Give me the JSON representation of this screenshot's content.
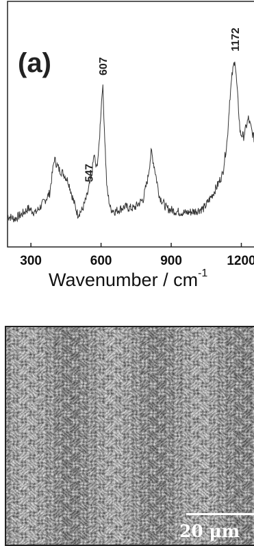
{
  "chart_data": {
    "type": "line",
    "panel_label": "(a)",
    "xlabel_main": "Wavenumber / cm",
    "xlabel_exp": "-1",
    "xlim": [
      200,
      1260
    ],
    "xticks": [
      300,
      600,
      900,
      1200
    ],
    "xtick_labels": [
      "300",
      "600",
      "900",
      "1200"
    ],
    "peak_annotations": [
      {
        "x": 547,
        "label": "547"
      },
      {
        "x": 607,
        "label": "607"
      },
      {
        "x": 1172,
        "label": "1172"
      }
    ],
    "series": [
      {
        "x": [
          200,
          230,
          260,
          290,
          320,
          350,
          380,
          400,
          420,
          440,
          460,
          480,
          500,
          520,
          540,
          560,
          570,
          580,
          590,
          600,
          607,
          615,
          625,
          640,
          660,
          700,
          740,
          780,
          800,
          815,
          830,
          850,
          880,
          920,
          960,
          1000,
          1040,
          1080,
          1100,
          1120,
          1140,
          1150,
          1160,
          1172,
          1185,
          1195,
          1210,
          1230,
          1260
        ],
        "y": [
          0.07,
          0.05,
          0.08,
          0.12,
          0.09,
          0.15,
          0.22,
          0.45,
          0.38,
          0.35,
          0.3,
          0.18,
          0.08,
          0.11,
          0.2,
          0.34,
          0.48,
          0.38,
          0.5,
          0.78,
          0.96,
          0.62,
          0.25,
          0.12,
          0.1,
          0.13,
          0.12,
          0.18,
          0.32,
          0.5,
          0.38,
          0.2,
          0.12,
          0.1,
          0.09,
          0.1,
          0.12,
          0.22,
          0.28,
          0.35,
          0.58,
          0.84,
          1.0,
          1.12,
          0.85,
          0.62,
          0.6,
          0.72,
          0.55
        ]
      }
    ],
    "grid": false
  },
  "micrograph": {
    "scale_text": "20 μm"
  }
}
